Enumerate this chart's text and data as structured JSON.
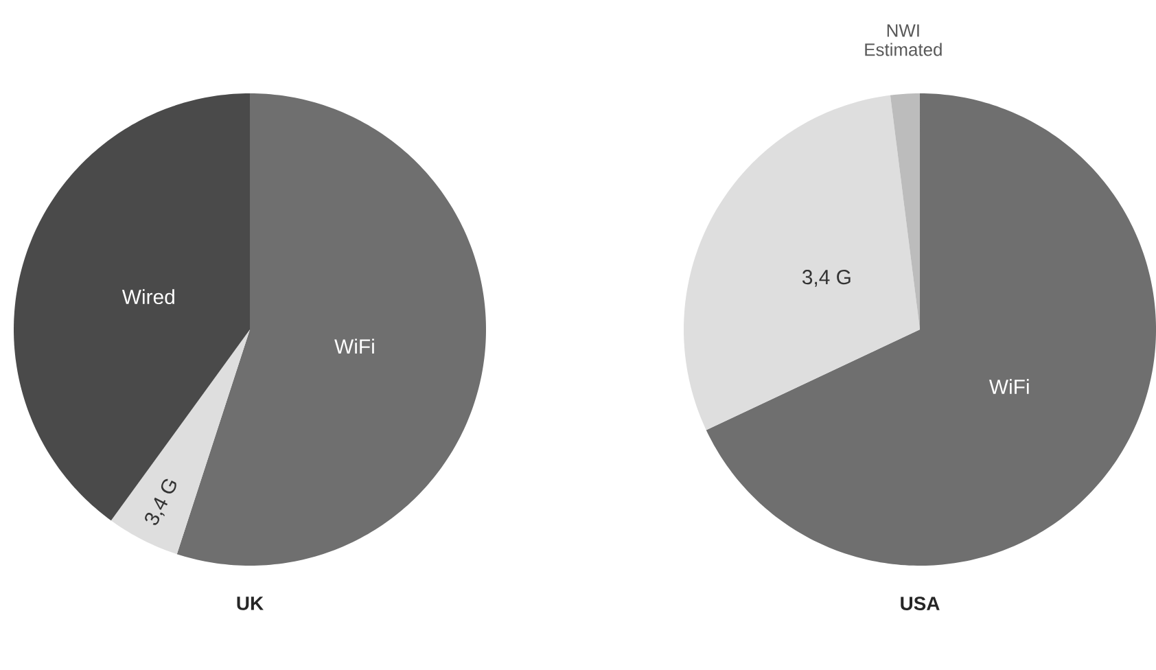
{
  "chart_data": [
    {
      "type": "pie",
      "title": "UK",
      "categories": [
        "WiFi",
        "3,4 G",
        "Wired"
      ],
      "values": [
        55,
        5,
        40
      ],
      "colors": [
        "#6f6f6f",
        "#dedede",
        "#4a4a4a"
      ]
    },
    {
      "type": "pie",
      "title": "USA",
      "categories": [
        "WiFi",
        "3,4 G",
        "NWI Estimated"
      ],
      "values": [
        68,
        30,
        2
      ],
      "colors": [
        "#6f6f6f",
        "#dedede",
        "#bcbcbc"
      ]
    }
  ]
}
